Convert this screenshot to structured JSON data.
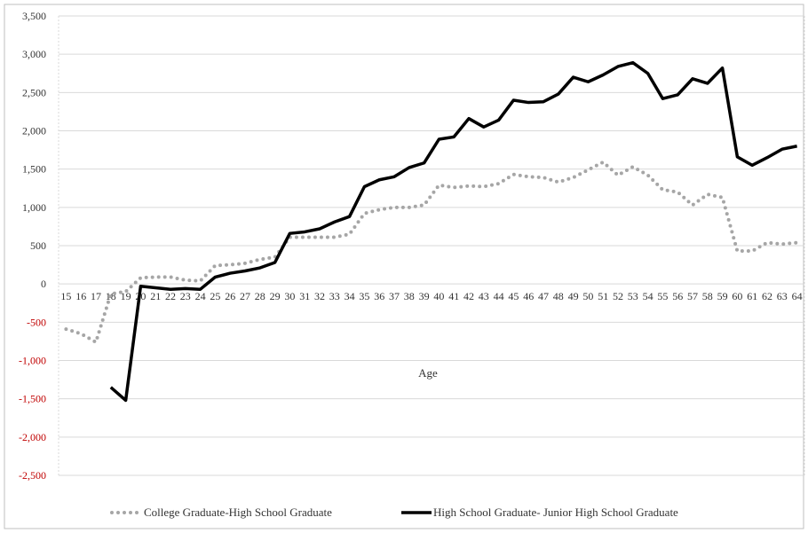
{
  "chart_data": {
    "type": "line",
    "title": "",
    "xlabel": "Age",
    "ylabel": "",
    "ylim": [
      -2500,
      3500
    ],
    "y_ticks": [
      "3,500",
      "3,000",
      "2,500",
      "2,000",
      "1,500",
      "1,000",
      "500",
      "0",
      "-500",
      "-1,000",
      "-1,500",
      "-2,000",
      "-2,500"
    ],
    "y_tick_values": [
      3500,
      3000,
      2500,
      2000,
      1500,
      1000,
      500,
      0,
      -500,
      -1000,
      -1500,
      -2000,
      -2500
    ],
    "negative_tick_color": "#c00000",
    "grid": true,
    "legend_position": "bottom",
    "categories": [
      "15",
      "16",
      "17",
      "18",
      "19",
      "20",
      "21",
      "22",
      "23",
      "24",
      "25",
      "26",
      "27",
      "28",
      "29",
      "30",
      "31",
      "32",
      "33",
      "34",
      "35",
      "36",
      "37",
      "38",
      "39",
      "40",
      "41",
      "42",
      "43",
      "44",
      "45",
      "46",
      "47",
      "48",
      "49",
      "50",
      "51",
      "52",
      "53",
      "54",
      "55",
      "56",
      "57",
      "58",
      "59",
      "60",
      "61",
      "62",
      "63",
      "64"
    ],
    "series": [
      {
        "name": "College Graduate-High School Graduate",
        "color": "#a6a6a6",
        "style": "dotted",
        "values": [
          -590,
          -650,
          -760,
          -130,
          -100,
          80,
          90,
          90,
          50,
          40,
          240,
          250,
          270,
          320,
          350,
          610,
          610,
          610,
          610,
          650,
          920,
          970,
          1000,
          1000,
          1030,
          1290,
          1260,
          1280,
          1270,
          1310,
          1430,
          1400,
          1390,
          1330,
          1390,
          1490,
          1590,
          1420,
          1530,
          1420,
          1230,
          1200,
          1030,
          1170,
          1130,
          430,
          430,
          540,
          520,
          540
        ]
      },
      {
        "name": "High School Graduate- Junior High School Graduate",
        "color": "#000000",
        "style": "solid",
        "values": [
          null,
          null,
          null,
          -1350,
          -1520,
          -30,
          -50,
          -70,
          -60,
          -70,
          90,
          140,
          170,
          210,
          280,
          660,
          680,
          720,
          810,
          880,
          1270,
          1360,
          1400,
          1520,
          1580,
          1890,
          1920,
          2160,
          2050,
          2140,
          2400,
          2370,
          2380,
          2480,
          2700,
          2640,
          2730,
          2840,
          2890,
          2750,
          2420,
          2470,
          2680,
          2620,
          2820,
          1660,
          1550,
          1650,
          1760,
          1800
        ]
      }
    ]
  }
}
